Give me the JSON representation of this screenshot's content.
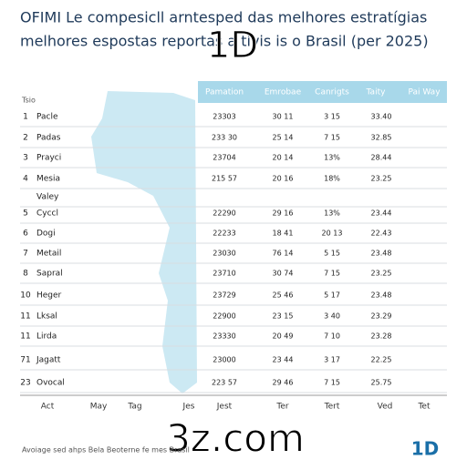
{
  "title": [
    "OFIMI Le compesicll arntesped das melhores estratígias",
    "melhores espostas reportas a tivis is o Brasil (per 2025)"
  ],
  "watermark_top": "1D",
  "table": {
    "corner": "Tsio",
    "headers": [
      "Pamation",
      "Emrobae",
      "Canrigts",
      "Taity",
      "Pai Way"
    ],
    "rows": [
      [
        "1",
        "Pacle",
        "23303",
        "30 11",
        "3 15",
        "33.40"
      ],
      [
        "2",
        "Padas",
        "233 30",
        "25 14",
        "7 15",
        "32.85"
      ],
      [
        "3",
        "Prayci",
        "23704",
        "20 14",
        "13%",
        "28.44"
      ],
      [
        "4",
        "Mesia",
        "215 57",
        "20 16",
        "18%",
        "23.25"
      ],
      [
        "",
        "Valey",
        "",
        "",
        "",
        ""
      ],
      [
        "5",
        "Cyccl",
        "22290",
        "29 16",
        "13%",
        "23.44"
      ],
      [
        "6",
        "Dogi",
        "22233",
        "18 41",
        "20 13",
        "22.43"
      ],
      [
        "7",
        "Metail",
        "23030",
        "76 14",
        "5 15",
        "23.48"
      ],
      [
        "8",
        "Sapral",
        "23710",
        "30 74",
        "7 15",
        "23.25"
      ],
      [
        "10",
        "Heger",
        "23729",
        "25 46",
        "5 17",
        "23.48"
      ],
      [
        "11",
        "Lksal",
        "22900",
        "23 15",
        "3 40",
        "23.29"
      ],
      [
        "11",
        "Lirda",
        "23330",
        "20 49",
        "7 10",
        "23.28"
      ],
      [
        "71",
        "Jagatt",
        "23000",
        "23 44",
        "3 17",
        "22.25"
      ],
      [
        "23",
        "Ovocal",
        "223 57",
        "29 46",
        "7 15",
        "25.75"
      ]
    ],
    "footer_labels": [
      "Act",
      "May",
      "Tag",
      "Jes",
      "Jest",
      "Ter",
      "Tert",
      "Ved",
      "Tet"
    ]
  },
  "watermark_bottom": "3z.com",
  "footer": "Avoiage sed ahps Bela Beoterne fe mes Brasil",
  "logo": "1D"
}
